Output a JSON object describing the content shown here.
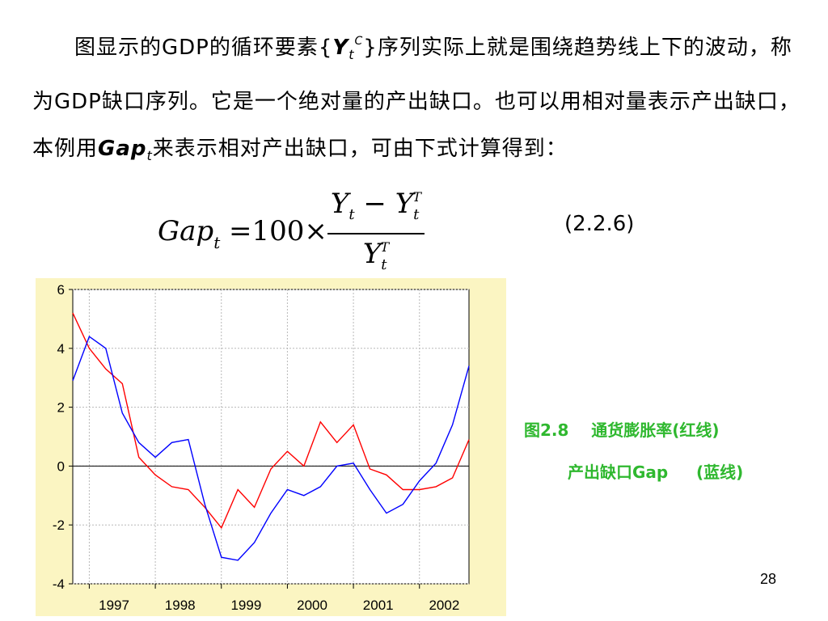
{
  "paragraph": {
    "line1_a": "图显示的GDP的循环要素{",
    "y_symbol": "Y",
    "y_sub": "t",
    "y_sup": "C",
    "line1_b": "}序列实际上就是围绕趋势线上下的波动，称为GDP缺口序列。它是一个绝对量的产出缺口。也可以用相对量表示产出缺口，本例用",
    "gap_symbol": "Gap",
    "gap_sub": "t",
    "line1_c": "来表示相对产出缺口，可由下式计算得到："
  },
  "formula": {
    "lhs": "Gap",
    "lhs_sub": "t",
    "equals": "=100×",
    "num_a": "Y",
    "num_a_sub": "t",
    "minus": " − ",
    "num_b": "Y",
    "num_b_sub": "t",
    "num_b_sup": "T",
    "den": "Y",
    "den_sub": "t",
    "den_sup": "T",
    "number": "(2.2.6)"
  },
  "chart_data": {
    "type": "line",
    "x_tick_labels": [
      "1997",
      "1998",
      "1999",
      "2000",
      "2001",
      "2002"
    ],
    "y_ticks": [
      -4,
      -2,
      0,
      2,
      4,
      6
    ],
    "ylim": [
      -4,
      6
    ],
    "xlim": [
      1996.75,
      2002.75
    ],
    "grid": true,
    "reference_line": 0,
    "series": [
      {
        "color": "#ff0000",
        "x": [
          1996.75,
          1997.0,
          1997.25,
          1997.5,
          1997.75,
          1998.0,
          1998.25,
          1998.5,
          1998.75,
          1999.0,
          1999.25,
          1999.5,
          1999.75,
          2000.0,
          2000.25,
          2000.5,
          2000.75,
          2001.0,
          2001.25,
          2001.5,
          2001.75,
          2002.0,
          2002.25,
          2002.5,
          2002.75
        ],
        "values": [
          5.2,
          4.0,
          3.3,
          2.8,
          0.3,
          -0.3,
          -0.7,
          -0.8,
          -1.4,
          -2.1,
          -0.8,
          -1.4,
          -0.1,
          0.5,
          0.0,
          1.5,
          0.8,
          1.4,
          -0.1,
          -0.3,
          -0.8,
          -0.8,
          -0.7,
          -0.4,
          0.9
        ]
      },
      {
        "color": "#0000ff",
        "x": [
          1996.75,
          1997.0,
          1997.25,
          1997.5,
          1997.75,
          1998.0,
          1998.25,
          1998.5,
          1998.75,
          1999.0,
          1999.25,
          1999.5,
          1999.75,
          2000.0,
          2000.25,
          2000.5,
          2000.75,
          2001.0,
          2001.25,
          2001.5,
          2001.75,
          2002.0,
          2002.25,
          2002.5,
          2002.75
        ],
        "values": [
          2.9,
          4.4,
          4.0,
          1.8,
          0.8,
          0.3,
          0.8,
          0.9,
          -1.3,
          -3.1,
          -3.2,
          -2.6,
          -1.6,
          -0.8,
          -1.0,
          -0.7,
          0.0,
          0.1,
          -0.8,
          -1.6,
          -1.3,
          -0.5,
          0.1,
          1.4,
          3.4
        ]
      }
    ]
  },
  "caption": {
    "line1": "图2.8    通货膨胀率(红线)",
    "line2": "产出缺口Gap     (蓝线)"
  },
  "page_number": "28"
}
